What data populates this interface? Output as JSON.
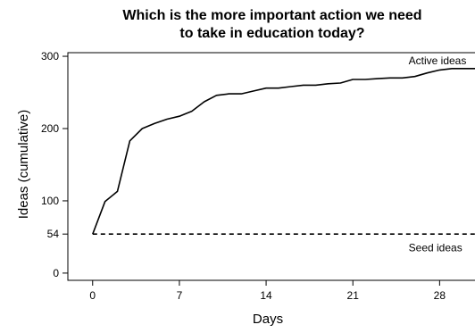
{
  "chart_data": {
    "type": "line",
    "title_lines": [
      "Which is the more important action we need",
      "to take in education today?"
    ],
    "xlabel": "Days",
    "ylabel": "Ideas (cumulative)",
    "xlim": [
      -2,
      31
    ],
    "ylim": [
      -10,
      305
    ],
    "x_ticks": [
      0,
      7,
      14,
      21,
      28
    ],
    "y_ticks": [
      0,
      54,
      100,
      200,
      300
    ],
    "grid": false,
    "annotations": [
      {
        "text": "Active ideas",
        "x": 25.5,
        "y": 289
      },
      {
        "text": "Seed ideas",
        "x": 25.5,
        "y": 30
      }
    ],
    "series": [
      {
        "name": "Active ideas",
        "style": "solid",
        "color": "#000000",
        "x": [
          0,
          1,
          2,
          3,
          4,
          5,
          6,
          7,
          8,
          9,
          10,
          11,
          12,
          13,
          14,
          15,
          16,
          17,
          18,
          19,
          20,
          21,
          22,
          23,
          24,
          25,
          26,
          27,
          28,
          29,
          30,
          31
        ],
        "values": [
          54,
          99,
          113,
          183,
          200,
          207,
          213,
          217,
          224,
          237,
          246,
          248,
          248,
          252,
          256,
          256,
          258,
          260,
          260,
          262,
          263,
          268,
          268,
          269,
          270,
          270,
          272,
          277,
          281,
          283,
          283,
          283
        ]
      },
      {
        "name": "Seed ideas",
        "style": "dashed",
        "color": "#000000",
        "x": [
          0,
          31
        ],
        "values": [
          54,
          54
        ]
      }
    ]
  }
}
